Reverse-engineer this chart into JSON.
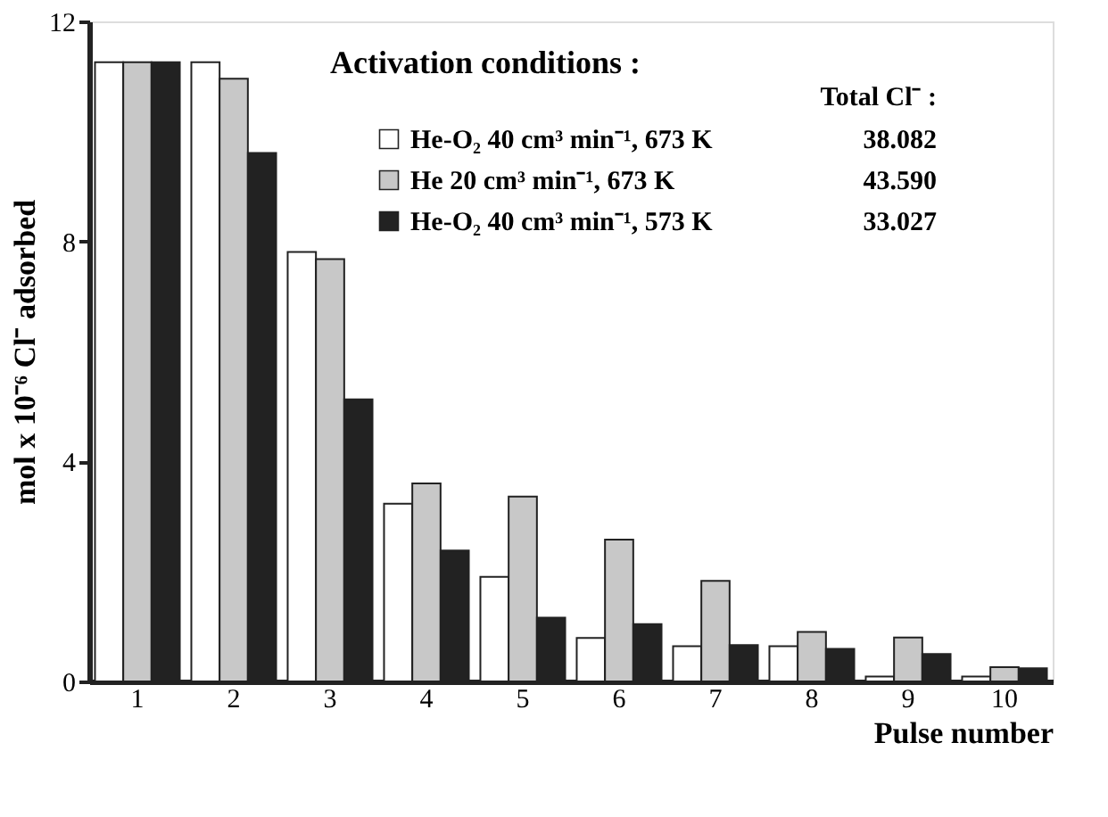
{
  "chart_data": {
    "type": "bar",
    "xlabel": "Pulse number",
    "ylabel": "mol x 10⁻⁶ Cl⁻ adsorbed",
    "categories": [
      "1",
      "2",
      "3",
      "4",
      "5",
      "6",
      "7",
      "8",
      "9",
      "10"
    ],
    "series": [
      {
        "name": "He-O₂ 40 cm³ min⁻¹, 673 K",
        "color": "#ffffff",
        "values": [
          11.26,
          11.26,
          7.81,
          3.23,
          1.9,
          0.79,
          0.64,
          0.64,
          0.09,
          0.09
        ]
      },
      {
        "name": "He 20 cm³ min⁻¹, 673 K",
        "color": "#c8c8c8",
        "values": [
          11.26,
          10.96,
          7.68,
          3.6,
          3.36,
          2.58,
          1.83,
          0.9,
          0.8,
          0.26
        ]
      },
      {
        "name": "He-O₂ 40 cm³ min⁻¹, 573 K",
        "color": "#222222",
        "values": [
          11.26,
          9.61,
          5.13,
          2.38,
          1.16,
          1.04,
          0.66,
          0.59,
          0.5,
          0.24
        ]
      }
    ],
    "legend_title": "Activation conditions :",
    "annotations": [
      "Total Cl⁻ :",
      "38.082",
      "43.590",
      "33.027"
    ],
    "ylim": [
      0,
      12
    ],
    "yticks": [
      0,
      4,
      8,
      12
    ],
    "grid": false,
    "legend": "top right"
  }
}
